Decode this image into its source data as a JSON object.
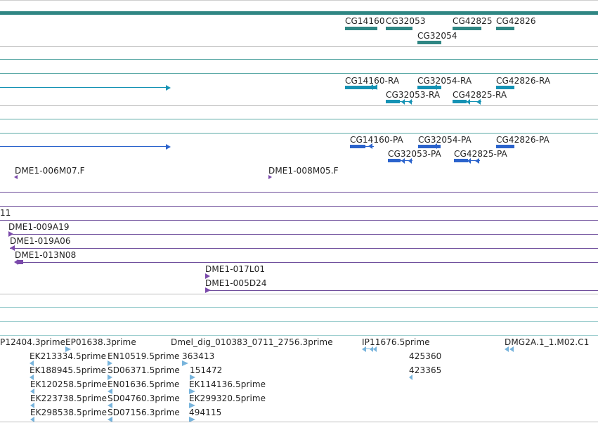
{
  "colors": {
    "gene": "#2f8683",
    "transcript": "#1592b4",
    "protein": "#2b63cc",
    "clone": "#7b4aab",
    "est": "#78b4dc",
    "separator_gray": "#bdbdbd",
    "separator_teal": "#5aa9a6",
    "separator_purple": "#6e4d9b"
  },
  "tracks": {
    "genes": {
      "labels": [
        "CG14160",
        "CG32053",
        "CG42825",
        "CG42826",
        "CG32054"
      ]
    },
    "transcripts": {
      "labels": [
        "CG14160-RA",
        "CG32054-RA",
        "CG42826-RA",
        "CG32053-RA",
        "CG42825-RA"
      ]
    },
    "proteins": {
      "labels": [
        "CG14160-PA",
        "CG32054-PA",
        "CG42826-PA",
        "CG32053-PA",
        "CG42825-PA"
      ]
    },
    "clones": {
      "labels": [
        "DME1-006M07.F",
        "DME1-008M05.F",
        "11",
        "DME1-009A19",
        "DME1-019A06",
        "DME1-013N08",
        "DME1-017L01",
        "DME1-005D24"
      ]
    },
    "ests": {
      "labels": [
        "P12404.3prime",
        "EP01638.3prime",
        "Dmel_dig_010383_0711_2756.3prime",
        "IP11676.5prime",
        "DMG2A.1_1.M02.C1",
        "EK213334.5prime",
        "EN10519.5prime",
        "363413",
        "425360",
        "EK188945.5prime",
        "SD06371.5prime",
        "151472",
        "423365",
        "EK120258.5prime",
        "EN01636.5prime",
        "EK114136.5prime",
        "EK223738.5prime",
        "SD04760.3prime",
        "EK299320.5prime",
        "EK298538.5prime",
        "SD07156.3prime",
        "494115"
      ]
    }
  }
}
